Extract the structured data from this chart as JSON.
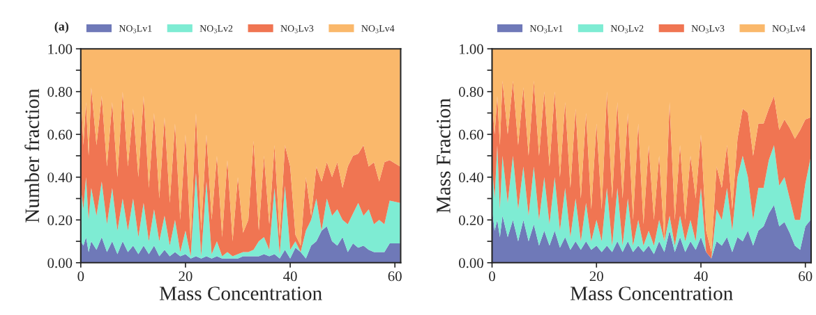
{
  "chart_data": [
    {
      "type": "area",
      "stacked": true,
      "title": "(a)",
      "xlabel": "Mass Concentration",
      "ylabel": "Number fraction",
      "xlim": [
        0,
        61.1
      ],
      "xticks": [
        0,
        20,
        40,
        60
      ],
      "ylim": [
        0,
        1
      ],
      "yticks": [
        {
          "value": 0,
          "label": "0.00"
        },
        {
          "value": 0.1,
          "label": null
        },
        {
          "value": 0.2,
          "label": "0.20"
        },
        {
          "value": 0.3,
          "label": null
        },
        {
          "value": 0.4,
          "label": "0.40"
        },
        {
          "value": 0.5,
          "label": null
        },
        {
          "value": 0.6,
          "label": "0.60"
        },
        {
          "value": 0.7,
          "label": null
        },
        {
          "value": 0.8,
          "label": "0.80"
        },
        {
          "value": 0.9,
          "label": null
        },
        {
          "value": 1,
          "label": "1.00"
        }
      ],
      "grid": false,
      "legend": "top",
      "x": [
        0,
        0.5,
        1,
        1.5,
        2,
        3,
        4,
        5,
        6,
        7,
        8,
        9,
        10,
        11,
        12,
        13,
        14,
        15,
        16,
        17,
        18,
        19,
        20,
        21,
        22,
        23,
        24,
        25,
        26,
        27,
        28,
        29,
        30,
        31,
        32,
        33,
        34,
        35,
        36,
        37,
        38,
        39,
        40,
        41,
        42,
        43,
        44,
        45,
        46,
        47,
        48,
        49,
        50,
        51,
        52,
        53,
        54,
        55,
        56,
        57,
        58,
        59,
        61
      ],
      "series": [
        {
          "name": "NO$_{3}$Lv1",
          "color": "#6f79b8",
          "values": [
            0.1,
            0.08,
            0.12,
            0.05,
            0.1,
            0.06,
            0.12,
            0.05,
            0.1,
            0.04,
            0.1,
            0.05,
            0.08,
            0.04,
            0.08,
            0.04,
            0.08,
            0.03,
            0.06,
            0.03,
            0.05,
            0.03,
            0.04,
            0.02,
            0.03,
            0.02,
            0.03,
            0.02,
            0.03,
            0.02,
            0.02,
            0.02,
            0.02,
            0.03,
            0.03,
            0.03,
            0.03,
            0.04,
            0.03,
            0.04,
            0.02,
            0.06,
            0.02,
            0.07,
            0.05,
            0.02,
            0.08,
            0.1,
            0.15,
            0.17,
            0.1,
            0.08,
            0.12,
            0.05,
            0.09,
            0.07,
            0.08,
            0.06,
            0.05,
            0.05,
            0.05,
            0.09,
            0.09
          ]
        },
        {
          "name": "NO$_{3}$Lv2",
          "color": "#7eecd3",
          "values": [
            0.25,
            0.17,
            0.28,
            0.15,
            0.25,
            0.16,
            0.26,
            0.13,
            0.25,
            0.11,
            0.2,
            0.1,
            0.22,
            0.08,
            0.2,
            0.06,
            0.17,
            0.07,
            0.16,
            0.05,
            0.15,
            0.02,
            0.11,
            0.01,
            0.39,
            0.01,
            0.35,
            0.02,
            0.07,
            0.01,
            0.03,
            0.01,
            0.02,
            0.02,
            0.02,
            0.03,
            0.07,
            0.08,
            0.03,
            0.31,
            0.02,
            0.3,
            0.04,
            0.03,
            0,
            0.13,
            0.12,
            0.2,
            0,
            0.13,
            0.12,
            0.17,
            0.08,
            0.13,
            0.14,
            0.21,
            0.14,
            0.19,
            0.13,
            0.15,
            0.13,
            0.2,
            0.19
          ]
        },
        {
          "name": "NO$_{3}$Lv3",
          "color": "#f07552",
          "values": [
            0.45,
            0.3,
            0.35,
            0.3,
            0.47,
            0.33,
            0.4,
            0.27,
            0.4,
            0.25,
            0.5,
            0.3,
            0.42,
            0.28,
            0.5,
            0.25,
            0.45,
            0.2,
            0.46,
            0.2,
            0.45,
            0.15,
            0.45,
            0.07,
            0.28,
            0.12,
            0.22,
            0.16,
            0.4,
            0.09,
            0.43,
            0.07,
            0.36,
            0.09,
            0.15,
            0.51,
            0.05,
            0.38,
            0.12,
            0.2,
            0.08,
            0.19,
            0.39,
            0.03,
            0.03,
            0.25,
            0.02,
            0.15,
            0.23,
            0.17,
            0.18,
            0.22,
            0.15,
            0.27,
            0.27,
            0.23,
            0.33,
            0.2,
            0.29,
            0.18,
            0.29,
            0.19,
            0.17
          ]
        },
        {
          "name": "NO$_{3}$Lv4",
          "color": "#fab86b",
          "values": [
            0.2,
            0.45,
            0.25,
            0.5,
            0.18,
            0.45,
            0.22,
            0.55,
            0.25,
            0.6,
            0.2,
            0.55,
            0.28,
            0.6,
            0.22,
            0.65,
            0.3,
            0.7,
            0.32,
            0.72,
            0.35,
            0.8,
            0.4,
            0.9,
            0.3,
            0.85,
            0.4,
            0.8,
            0.5,
            0.88,
            0.52,
            0.9,
            0.6,
            0.86,
            0.8,
            0.43,
            0.85,
            0.5,
            0.82,
            0.45,
            0.88,
            0.45,
            0.55,
            0.87,
            0.92,
            0.6,
            0.78,
            0.55,
            0.62,
            0.53,
            0.6,
            0.53,
            0.65,
            0.55,
            0.5,
            0.49,
            0.45,
            0.55,
            0.53,
            0.62,
            0.53,
            0.52,
            0.55
          ]
        }
      ]
    },
    {
      "type": "area",
      "stacked": true,
      "xlabel": "Mass Concentration",
      "ylabel": "Mass Fraction",
      "xlim": [
        0,
        61.1
      ],
      "xticks": [
        0,
        20,
        40,
        60
      ],
      "ylim": [
        0,
        1
      ],
      "yticks": [
        {
          "value": 0,
          "label": "0.00"
        },
        {
          "value": 0.1,
          "label": null
        },
        {
          "value": 0.2,
          "label": "0.20"
        },
        {
          "value": 0.3,
          "label": null
        },
        {
          "value": 0.4,
          "label": "0.40"
        },
        {
          "value": 0.5,
          "label": null
        },
        {
          "value": 0.6,
          "label": "0.60"
        },
        {
          "value": 0.7,
          "label": null
        },
        {
          "value": 0.8,
          "label": "0.80"
        },
        {
          "value": 0.9,
          "label": null
        },
        {
          "value": 1,
          "label": "1.00"
        }
      ],
      "grid": false,
      "legend": "top",
      "x": [
        0,
        0.5,
        1,
        1.5,
        2,
        3,
        4,
        5,
        6,
        7,
        8,
        9,
        10,
        11,
        12,
        13,
        14,
        15,
        16,
        17,
        18,
        19,
        20,
        21,
        22,
        23,
        24,
        25,
        26,
        27,
        28,
        29,
        30,
        31,
        32,
        33,
        34,
        35,
        36,
        37,
        38,
        39,
        40,
        41,
        42,
        43,
        44,
        45,
        46,
        47,
        48,
        49,
        50,
        51,
        52,
        53,
        54,
        55,
        56,
        57,
        58,
        59,
        60,
        61
      ],
      "series": [
        {
          "name": "NO$_{3}$Lv1",
          "color": "#6f79b8",
          "values": [
            0.25,
            0.15,
            0.2,
            0.12,
            0.22,
            0.12,
            0.2,
            0.1,
            0.2,
            0.1,
            0.18,
            0.08,
            0.15,
            0.08,
            0.15,
            0.07,
            0.12,
            0.06,
            0.1,
            0.06,
            0.1,
            0.06,
            0.08,
            0.05,
            0.08,
            0.05,
            0.1,
            0.05,
            0.1,
            0.05,
            0.08,
            0.05,
            0.08,
            0.04,
            0.1,
            0.05,
            0.15,
            0.05,
            0.12,
            0.05,
            0.1,
            0.06,
            0.12,
            0.05,
            0.02,
            0.1,
            0.08,
            0.12,
            0.05,
            0.12,
            0.1,
            0.15,
            0.08,
            0.15,
            0.17,
            0.23,
            0.27,
            0.17,
            0.19,
            0.14,
            0.08,
            0.06,
            0.17,
            0.2
          ]
        },
        {
          "name": "NO$_{3}$Lv2",
          "color": "#7eecd3",
          "values": [
            0.2,
            0.15,
            0.35,
            0.13,
            0.28,
            0.16,
            0.3,
            0.15,
            0.25,
            0.12,
            0.27,
            0.12,
            0.25,
            0.1,
            0.25,
            0.08,
            0.23,
            0.06,
            0.2,
            0.04,
            0.18,
            0.04,
            0.12,
            0.05,
            0.27,
            0.03,
            0.25,
            0.03,
            0.2,
            0.03,
            0.12,
            0.03,
            0.07,
            0.04,
            0.1,
            0.05,
            0.07,
            0.03,
            0.1,
            0.05,
            0.1,
            0.04,
            0.23,
            0,
            0,
            0.15,
            0.12,
            0.23,
            0.1,
            0.28,
            0.4,
            0.25,
            0.12,
            0.2,
            0.18,
            0.25,
            0.28,
            0.19,
            0.21,
            0.16,
            0.12,
            0.14,
            0.2,
            0.29
          ]
        },
        {
          "name": "NO$_{3}$Lv3",
          "color": "#f07552",
          "values": [
            0.3,
            0.3,
            0.23,
            0.3,
            0.35,
            0.32,
            0.35,
            0.3,
            0.37,
            0.28,
            0.4,
            0.3,
            0.4,
            0.27,
            0.4,
            0.25,
            0.4,
            0.23,
            0.42,
            0.2,
            0.42,
            0.15,
            0.45,
            0.15,
            0.45,
            0.22,
            0.4,
            0.22,
            0.4,
            0.12,
            0.45,
            0.1,
            0.4,
            0.12,
            0.3,
            0,
            0.53,
            0.12,
            0.33,
            0.1,
            0.3,
            0.2,
            0.25,
            0.1,
            0.03,
            0.2,
            0.15,
            0.2,
            0.1,
            0.18,
            0.22,
            0.3,
            0.3,
            0.3,
            0.3,
            0.24,
            0.23,
            0.26,
            0.27,
            0.33,
            0.38,
            0.42,
            0.3,
            0.19
          ]
        },
        {
          "name": "NO$_{3}$Lv4",
          "color": "#fab86b",
          "values": [
            0.25,
            0.4,
            0.22,
            0.45,
            0.15,
            0.4,
            0.15,
            0.45,
            0.18,
            0.5,
            0.15,
            0.5,
            0.2,
            0.55,
            0.2,
            0.6,
            0.25,
            0.65,
            0.28,
            0.7,
            0.3,
            0.75,
            0.35,
            0.75,
            0.2,
            0.7,
            0.25,
            0.7,
            0.3,
            0.8,
            0.35,
            0.82,
            0.45,
            0.8,
            0.5,
            0.9,
            0.25,
            0.8,
            0.45,
            0.8,
            0.5,
            0.7,
            0.4,
            0.85,
            0.95,
            0.55,
            0.65,
            0.45,
            0.75,
            0.42,
            0.28,
            0.3,
            0.5,
            0.35,
            0.35,
            0.28,
            0.22,
            0.38,
            0.33,
            0.37,
            0.42,
            0.38,
            0.33,
            0.32
          ]
        }
      ]
    }
  ]
}
